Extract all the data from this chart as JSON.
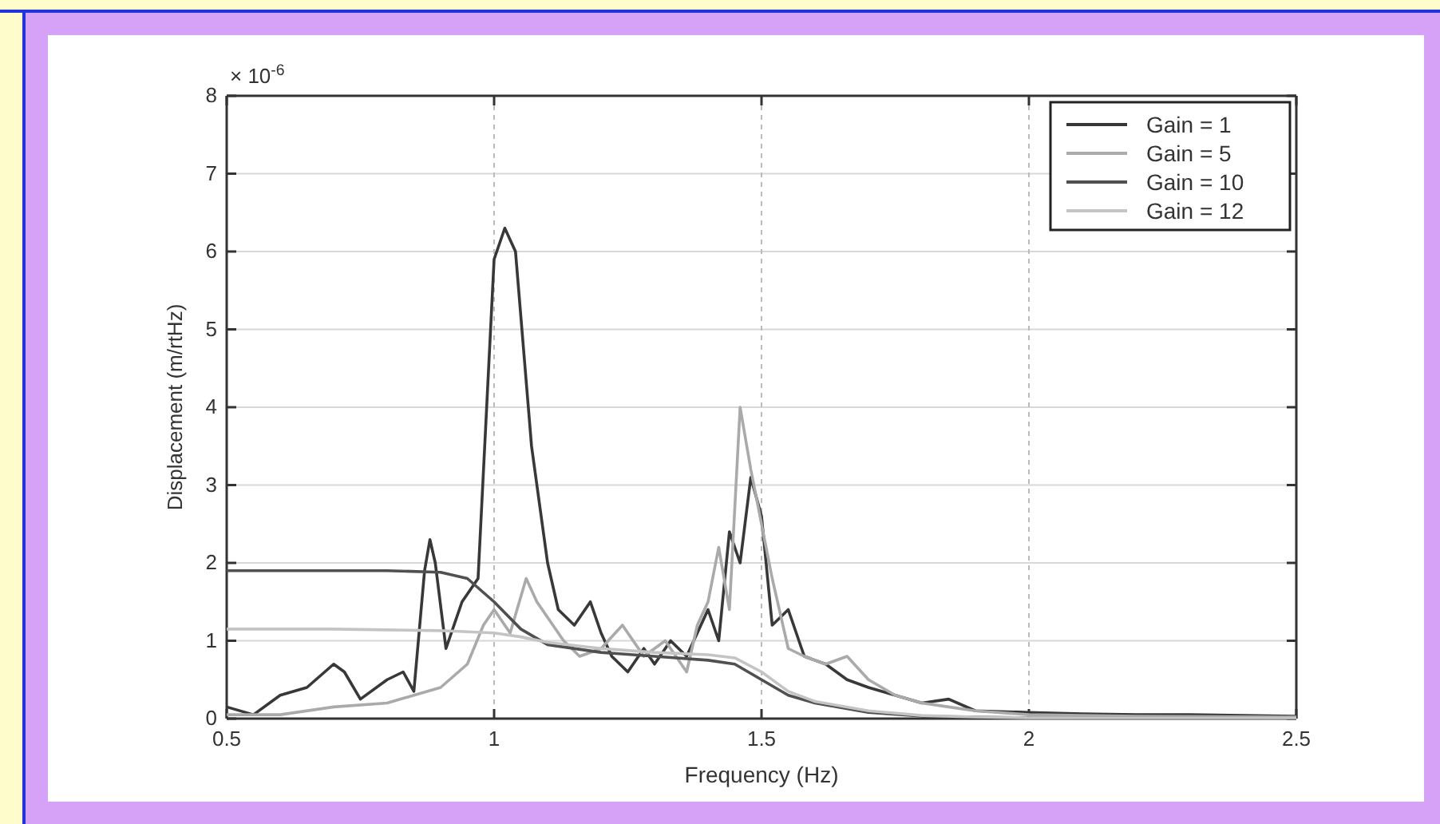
{
  "chart_data": {
    "type": "line",
    "xlabel": "Frequency (Hz)",
    "ylabel": "Displacement (m/rtHz)",
    "annotations": [
      "× 10$^{-6}$"
    ],
    "xlim": [
      0.5,
      2.5
    ],
    "xticks": [
      0.5,
      1,
      1.5,
      2,
      2.5
    ],
    "ylim": [
      0,
      8
    ],
    "yticks": [
      0,
      1,
      2,
      3,
      4,
      5,
      6,
      7,
      8
    ],
    "grid": true,
    "legend": "top right",
    "line_style": "solid",
    "marker": "none",
    "series": [
      {
        "name": "Gain = 1",
        "color": "#383838",
        "x": [
          0.5,
          0.55,
          0.6,
          0.65,
          0.7,
          0.72,
          0.75,
          0.8,
          0.83,
          0.85,
          0.87,
          0.88,
          0.89,
          0.91,
          0.94,
          0.97,
          1.0,
          1.02,
          1.04,
          1.07,
          1.1,
          1.12,
          1.15,
          1.18,
          1.2,
          1.22,
          1.25,
          1.28,
          1.3,
          1.33,
          1.36,
          1.38,
          1.4,
          1.42,
          1.44,
          1.46,
          1.48,
          1.5,
          1.52,
          1.55,
          1.58,
          1.62,
          1.66,
          1.7,
          1.75,
          1.8,
          1.85,
          1.9,
          2.0,
          2.1,
          2.2,
          2.3,
          2.4,
          2.5
        ],
        "values": [
          0.15,
          0.05,
          0.3,
          0.4,
          0.7,
          0.6,
          0.25,
          0.5,
          0.6,
          0.35,
          1.9,
          2.3,
          2.0,
          0.9,
          1.5,
          1.8,
          5.9,
          6.3,
          6.0,
          3.5,
          2.0,
          1.4,
          1.2,
          1.5,
          1.1,
          0.8,
          0.6,
          0.9,
          0.7,
          1.0,
          0.8,
          1.1,
          1.4,
          1.0,
          2.4,
          2.0,
          3.1,
          2.6,
          1.2,
          1.4,
          0.8,
          0.7,
          0.5,
          0.4,
          0.3,
          0.2,
          0.25,
          0.1,
          0.08,
          0.06,
          0.05,
          0.05,
          0.04,
          0.03
        ]
      },
      {
        "name": "Gain = 5",
        "color": "#aaaaaa",
        "x": [
          0.5,
          0.6,
          0.7,
          0.8,
          0.85,
          0.9,
          0.95,
          0.98,
          1.0,
          1.03,
          1.06,
          1.08,
          1.1,
          1.13,
          1.16,
          1.2,
          1.24,
          1.28,
          1.32,
          1.36,
          1.38,
          1.4,
          1.42,
          1.44,
          1.46,
          1.48,
          1.52,
          1.55,
          1.58,
          1.62,
          1.66,
          1.7,
          1.75,
          1.8,
          1.85,
          1.9,
          2.0,
          2.2,
          2.5
        ],
        "values": [
          0.05,
          0.05,
          0.15,
          0.2,
          0.3,
          0.4,
          0.7,
          1.2,
          1.4,
          1.1,
          1.8,
          1.5,
          1.3,
          1.0,
          0.8,
          0.9,
          1.2,
          0.8,
          1.0,
          0.6,
          1.2,
          1.5,
          2.2,
          1.4,
          4.0,
          3.2,
          1.8,
          0.9,
          0.8,
          0.7,
          0.8,
          0.5,
          0.3,
          0.2,
          0.15,
          0.1,
          0.05,
          0.03,
          0.02
        ]
      },
      {
        "name": "Gain = 10",
        "color": "#505050",
        "x": [
          0.5,
          0.6,
          0.7,
          0.8,
          0.9,
          0.95,
          1.0,
          1.05,
          1.1,
          1.2,
          1.3,
          1.4,
          1.45,
          1.5,
          1.55,
          1.6,
          1.7,
          1.8,
          1.9,
          2.0,
          2.2,
          2.5
        ],
        "values": [
          1.9,
          1.9,
          1.9,
          1.9,
          1.88,
          1.8,
          1.5,
          1.15,
          0.95,
          0.85,
          0.8,
          0.75,
          0.7,
          0.5,
          0.3,
          0.2,
          0.08,
          0.03,
          0.02,
          0.01,
          0.01,
          0.01
        ]
      },
      {
        "name": "Gain = 12",
        "color": "#c4c4c4",
        "x": [
          0.5,
          0.6,
          0.7,
          0.8,
          0.9,
          1.0,
          1.05,
          1.1,
          1.2,
          1.3,
          1.4,
          1.45,
          1.5,
          1.55,
          1.6,
          1.7,
          1.8,
          1.9,
          2.0,
          2.2,
          2.5
        ],
        "values": [
          1.15,
          1.15,
          1.15,
          1.14,
          1.13,
          1.1,
          1.05,
          0.98,
          0.9,
          0.85,
          0.82,
          0.78,
          0.6,
          0.35,
          0.22,
          0.1,
          0.04,
          0.02,
          0.01,
          0.01,
          0.01
        ]
      }
    ]
  }
}
